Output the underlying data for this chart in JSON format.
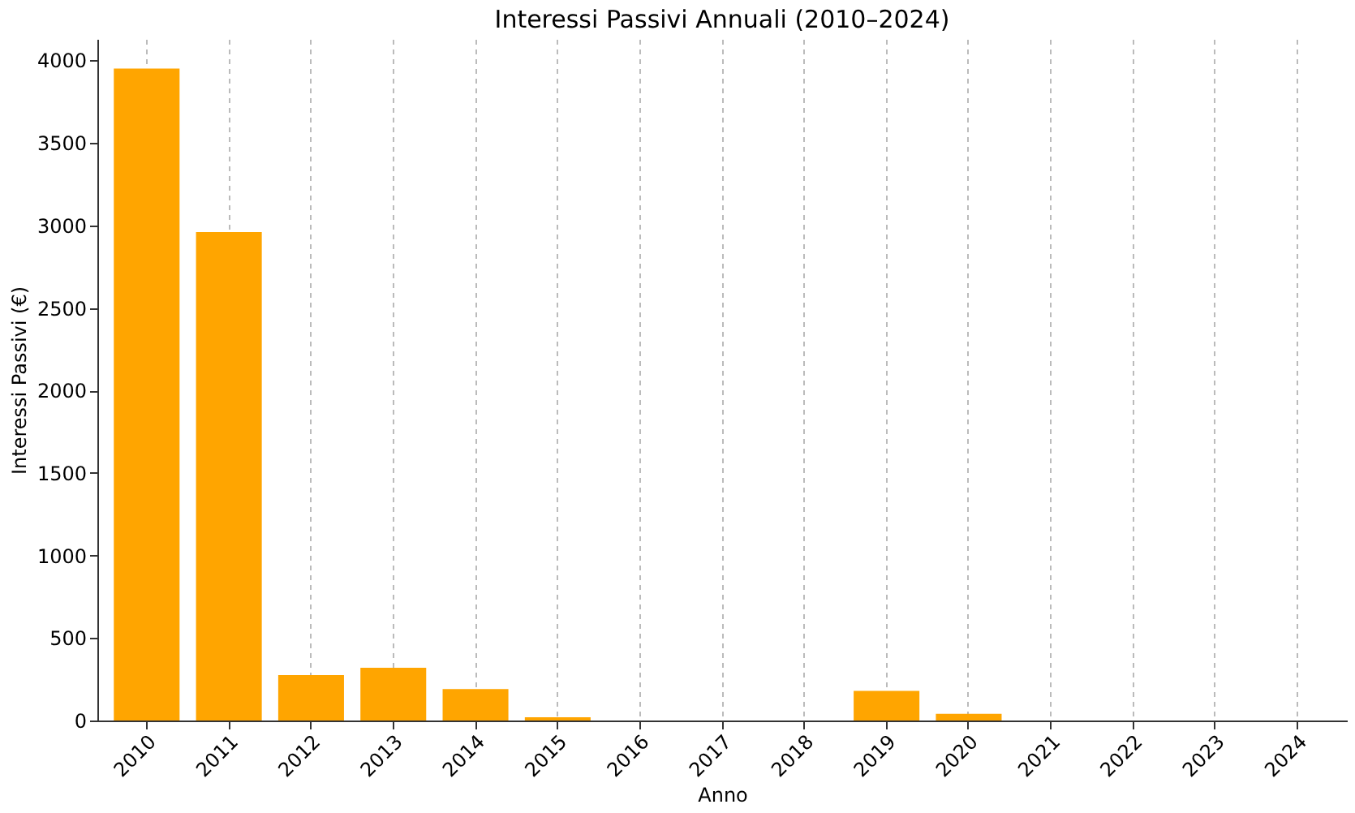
{
  "chart_data": {
    "type": "bar",
    "title": "Interessi Passivi Annuali (2010–2024)",
    "xlabel": "Anno",
    "ylabel": "Interessi Passivi (€)",
    "categories": [
      "2010",
      "2011",
      "2012",
      "2013",
      "2014",
      "2015",
      "2016",
      "2017",
      "2018",
      "2019",
      "2020",
      "2021",
      "2022",
      "2023",
      "2024"
    ],
    "values": [
      3950,
      2960,
      275,
      320,
      190,
      20,
      0,
      0,
      0,
      180,
      40,
      0,
      0,
      0,
      0
    ],
    "color": "#ffa500",
    "ylim": [
      0,
      4130
    ],
    "yticks": [
      0,
      500,
      1000,
      1500,
      2000,
      2500,
      3000,
      3500,
      4000
    ],
    "grid": "x"
  }
}
